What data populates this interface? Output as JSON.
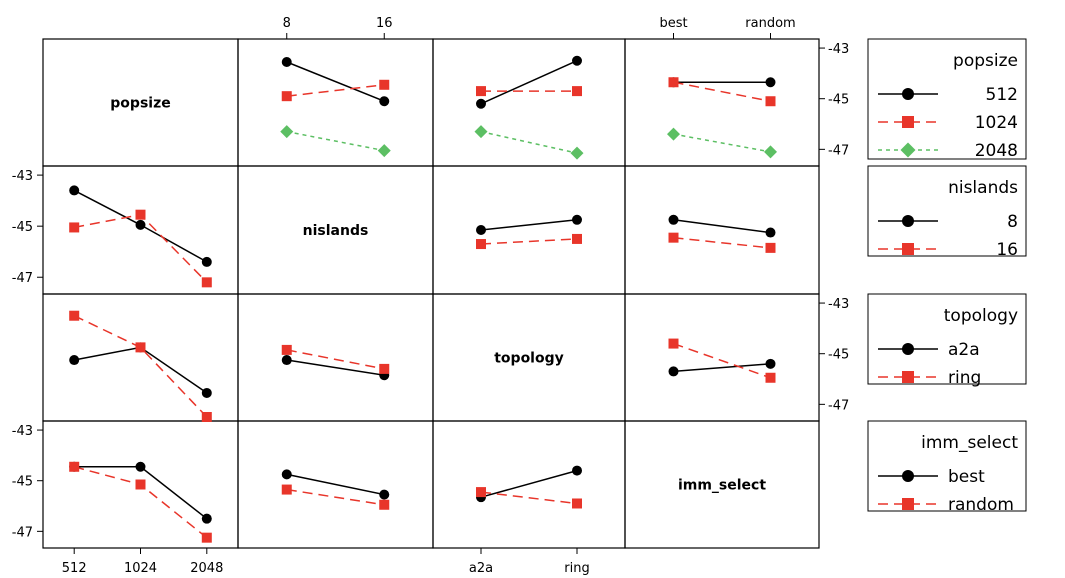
{
  "chart_data": {
    "type": "line",
    "kind": "interaction_plot_matrix",
    "factors": [
      {
        "name": "popsize",
        "levels": [
          "512",
          "1024",
          "2048"
        ]
      },
      {
        "name": "nislands",
        "levels": [
          "8",
          "16"
        ]
      },
      {
        "name": "topology",
        "levels": [
          "a2a",
          "ring"
        ]
      },
      {
        "name": "imm_select",
        "levels": [
          "best",
          "random"
        ]
      }
    ],
    "ylim": [
      -47.5,
      -42.8
    ],
    "y_ticks": [
      -43,
      -45,
      -47
    ],
    "series_styles": [
      {
        "color": "#000000",
        "marker": "circle",
        "dash": "solid"
      },
      {
        "color": "#e8352a",
        "marker": "square",
        "dash": "dash"
      },
      {
        "color": "#5cbf63",
        "marker": "diamond",
        "dash": "dot"
      }
    ],
    "panels": [
      {
        "row": 0,
        "col": 1,
        "trace": "popsize",
        "x": "nislands",
        "series": [
          {
            "name": "512",
            "values": [
              -43.55,
              -45.1
            ]
          },
          {
            "name": "1024",
            "values": [
              -44.9,
              -44.45
            ]
          },
          {
            "name": "2048",
            "values": [
              -46.3,
              -47.05
            ]
          }
        ]
      },
      {
        "row": 0,
        "col": 2,
        "trace": "popsize",
        "x": "topology",
        "series": [
          {
            "name": "512",
            "values": [
              -45.2,
              -43.5
            ]
          },
          {
            "name": "1024",
            "values": [
              -44.7,
              -44.7
            ]
          },
          {
            "name": "2048",
            "values": [
              -46.3,
              -47.15
            ]
          }
        ]
      },
      {
        "row": 0,
        "col": 3,
        "trace": "popsize",
        "x": "imm_select",
        "series": [
          {
            "name": "512",
            "values": [
              -44.35,
              -44.35
            ]
          },
          {
            "name": "1024",
            "values": [
              -44.35,
              -45.1
            ]
          },
          {
            "name": "2048",
            "values": [
              -46.4,
              -47.1
            ]
          }
        ]
      },
      {
        "row": 1,
        "col": 0,
        "trace": "nislands",
        "x": "popsize",
        "series": [
          {
            "name": "8",
            "values": [
              -43.6,
              -44.95,
              -46.4
            ]
          },
          {
            "name": "16",
            "values": [
              -45.05,
              -44.55,
              -47.2
            ]
          }
        ]
      },
      {
        "row": 1,
        "col": 2,
        "trace": "nislands",
        "x": "topology",
        "series": [
          {
            "name": "8",
            "values": [
              -45.15,
              -44.75
            ]
          },
          {
            "name": "16",
            "values": [
              -45.7,
              -45.5
            ]
          }
        ]
      },
      {
        "row": 1,
        "col": 3,
        "trace": "nislands",
        "x": "imm_select",
        "series": [
          {
            "name": "8",
            "values": [
              -44.75,
              -45.25
            ]
          },
          {
            "name": "16",
            "values": [
              -45.45,
              -45.85
            ]
          }
        ]
      },
      {
        "row": 2,
        "col": 0,
        "trace": "topology",
        "x": "popsize",
        "series": [
          {
            "name": "a2a",
            "values": [
              -45.25,
              -44.75,
              -46.55
            ]
          },
          {
            "name": "ring",
            "values": [
              -43.5,
              -44.75,
              -47.5
            ]
          }
        ]
      },
      {
        "row": 2,
        "col": 1,
        "trace": "topology",
        "x": "nislands",
        "series": [
          {
            "name": "a2a",
            "values": [
              -45.25,
              -45.85
            ]
          },
          {
            "name": "ring",
            "values": [
              -44.85,
              -45.6
            ]
          }
        ]
      },
      {
        "row": 2,
        "col": 3,
        "trace": "topology",
        "x": "imm_select",
        "series": [
          {
            "name": "a2a",
            "values": [
              -45.7,
              -45.4
            ]
          },
          {
            "name": "ring",
            "values": [
              -44.6,
              -45.95
            ]
          }
        ]
      },
      {
        "row": 3,
        "col": 0,
        "trace": "imm_select",
        "x": "popsize",
        "series": [
          {
            "name": "best",
            "values": [
              -44.45,
              -44.45,
              -46.5
            ]
          },
          {
            "name": "random",
            "values": [
              -44.45,
              -45.15,
              -47.25
            ]
          }
        ]
      },
      {
        "row": 3,
        "col": 1,
        "trace": "imm_select",
        "x": "nislands",
        "series": [
          {
            "name": "best",
            "values": [
              -44.75,
              -45.55
            ]
          },
          {
            "name": "random",
            "values": [
              -45.35,
              -45.95
            ]
          }
        ]
      },
      {
        "row": 3,
        "col": 2,
        "trace": "imm_select",
        "x": "topology",
        "series": [
          {
            "name": "best",
            "values": [
              -45.65,
              -44.6
            ]
          },
          {
            "name": "random",
            "values": [
              -45.45,
              -45.9
            ]
          }
        ]
      }
    ],
    "legends": [
      {
        "title": "popsize",
        "entries": [
          "512",
          "1024",
          "2048"
        ],
        "align": "right"
      },
      {
        "title": "nislands",
        "entries": [
          "8",
          "16"
        ],
        "align": "right"
      },
      {
        "title": "topology",
        "entries": [
          "a2a",
          "ring"
        ],
        "align": "left"
      },
      {
        "title": "imm_select",
        "entries": [
          "best",
          "random"
        ],
        "align": "left"
      }
    ],
    "grid": false,
    "legend_position": "right"
  }
}
